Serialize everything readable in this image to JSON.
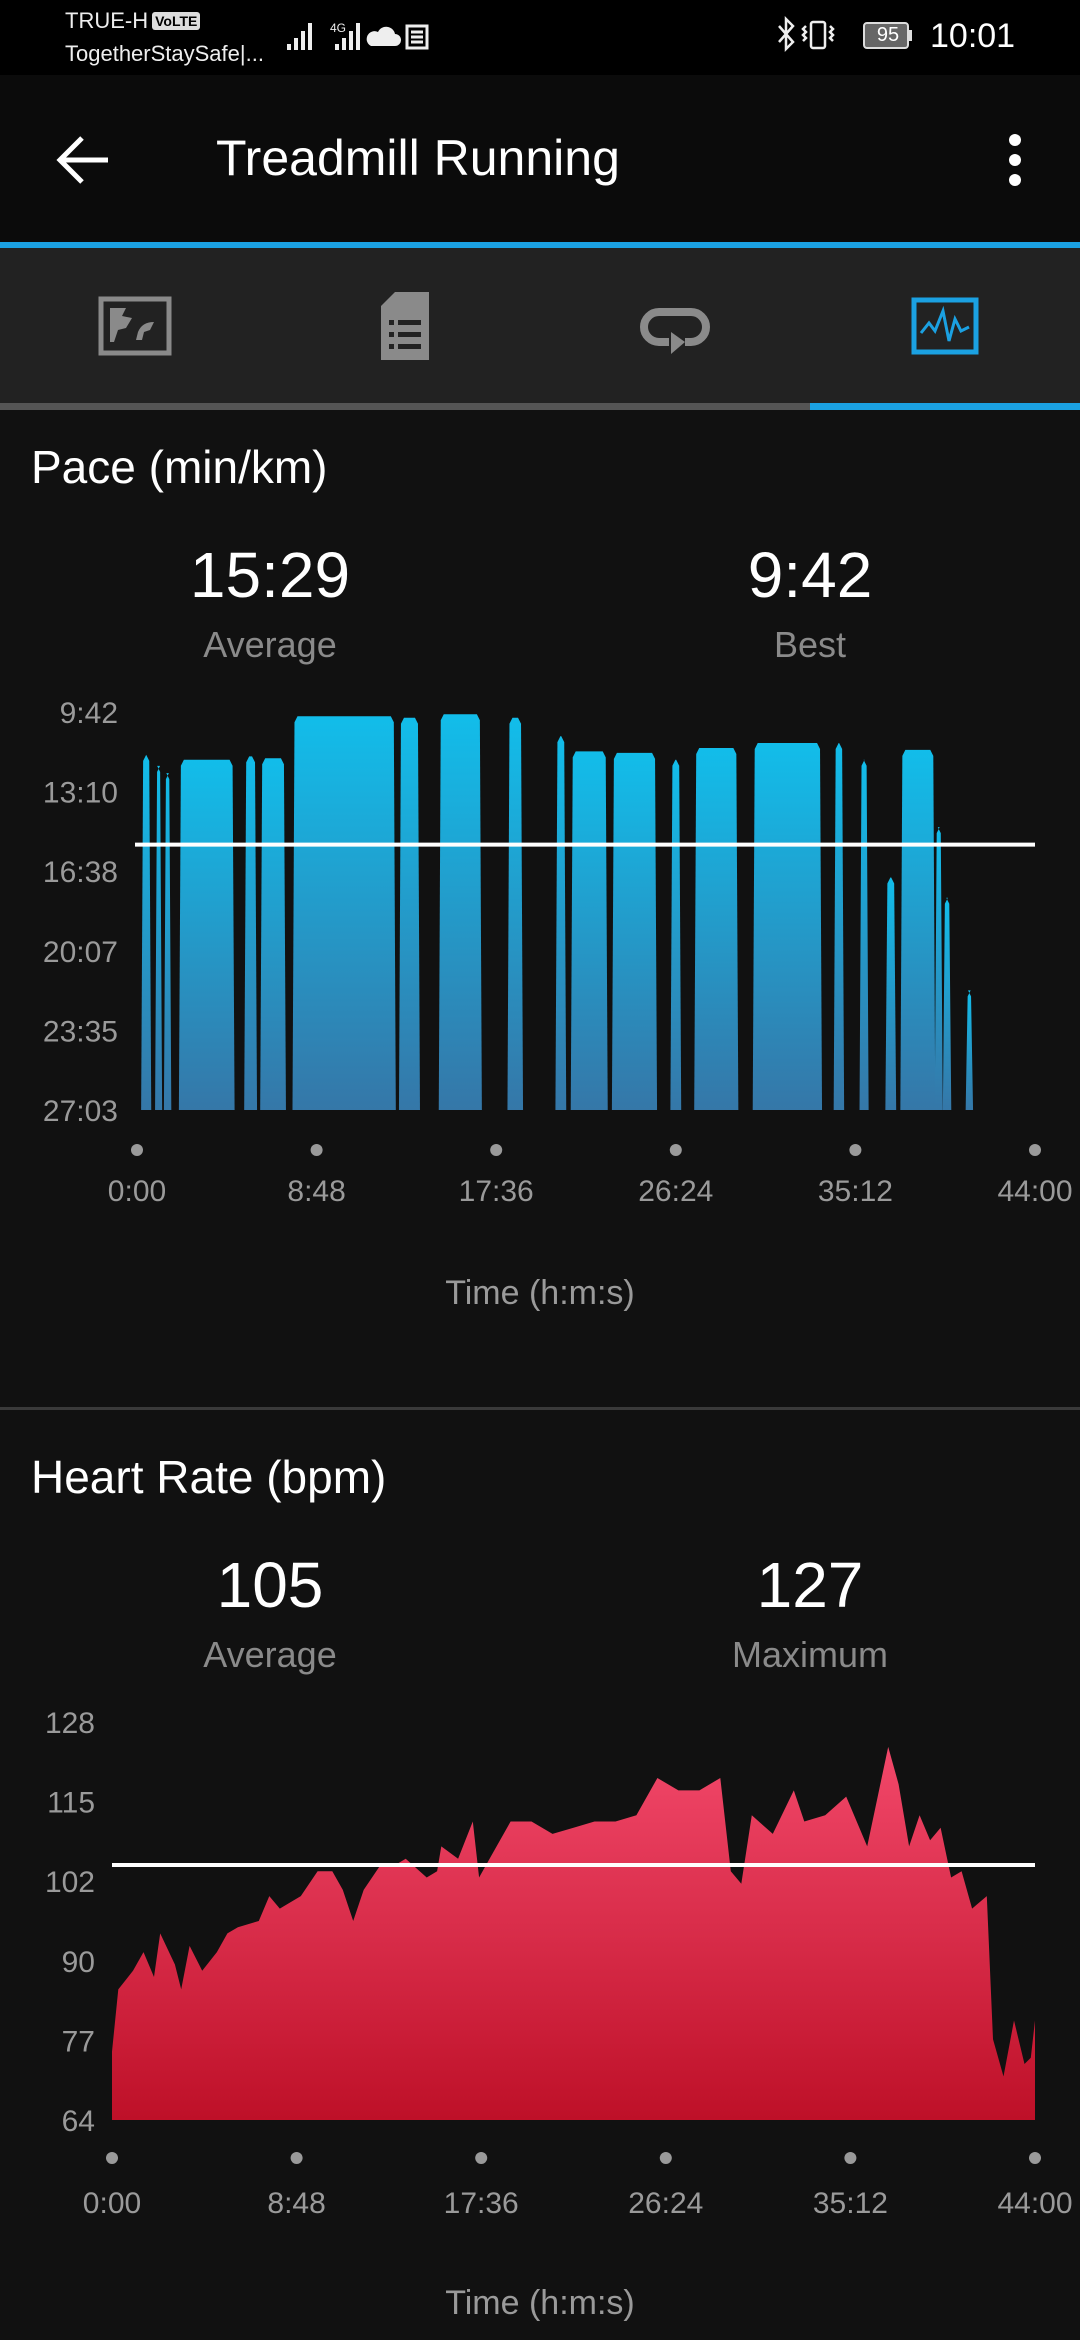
{
  "status_bar": {
    "carrier": "TRUE-H",
    "volte_badge": "VoLTE",
    "notification_text": "TogetherStaySafe|...",
    "battery_level": "95",
    "time": "10:01",
    "icons": [
      "signal-icon",
      "4g-signal-icon",
      "cloud-icon",
      "news-icon",
      "bluetooth-icon",
      "vibrate-icon",
      "battery-icon"
    ]
  },
  "app_bar": {
    "title": "Treadmill Running",
    "back_icon": "arrow-left-icon",
    "menu_icon": "more-vertical-icon"
  },
  "colors": {
    "accent": "#1ba1e2",
    "pace_top": "#12bdea",
    "pace_bottom": "#3577a8",
    "hr_top": "#f2486a",
    "hr_bottom": "#be1028",
    "inactive_icon": "#8a8a8a"
  },
  "tabs": [
    {
      "name": "map",
      "icon": "map-icon",
      "active": false
    },
    {
      "name": "details",
      "icon": "document-list-icon",
      "active": false
    },
    {
      "name": "laps",
      "icon": "laps-loop-icon",
      "active": false
    },
    {
      "name": "charts",
      "icon": "chart-pulse-icon",
      "active": true
    }
  ],
  "pace": {
    "title": "Pace (min/km)",
    "average_value": "15:29",
    "average_label": "Average",
    "best_value": "9:42",
    "best_label": "Best"
  },
  "heart_rate": {
    "title": "Heart Rate (bpm)",
    "average_value": "105",
    "average_label": "Average",
    "max_value": "127",
    "max_label": "Maximum"
  },
  "chart_data": [
    {
      "type": "area",
      "xlabel": "Time (h:m:s)",
      "ylabel": "Pace (min/km)",
      "x_ticks": [
        "0:00",
        "8:48",
        "17:36",
        "26:24",
        "35:12",
        "44:00"
      ],
      "y_ticks": [
        "9:42",
        "13:10",
        "16:38",
        "20:07",
        "23:35",
        "27:03"
      ],
      "xlim": [
        "0:00",
        "44:00"
      ],
      "ylim": [
        "27:03",
        "9:42"
      ],
      "y_inverted": true,
      "average_line": "15:29",
      "grid": false,
      "segments": [
        {
          "start": "0:18",
          "end": "0:36",
          "pace": "11:34"
        },
        {
          "start": "0:59",
          "end": "1:08",
          "pace": "12:03"
        },
        {
          "start": "1:25",
          "end": "1:35",
          "pace": "12:22"
        },
        {
          "start": "2:09",
          "end": "4:41",
          "pace": "11:47"
        },
        {
          "start": "5:21",
          "end": "5:47",
          "pace": "11:38"
        },
        {
          "start": "6:08",
          "end": "7:12",
          "pace": "11:43"
        },
        {
          "start": "7:43",
          "end": "12:35",
          "pace": "9:53"
        },
        {
          "start": "12:56",
          "end": "13:46",
          "pace": "9:57"
        },
        {
          "start": "14:53",
          "end": "16:48",
          "pace": "9:48"
        },
        {
          "start": "18:15",
          "end": "18:49",
          "pace": "9:57"
        },
        {
          "start": "20:36",
          "end": "20:56",
          "pace": "10:45"
        },
        {
          "start": "21:21",
          "end": "22:58",
          "pace": "11:25"
        },
        {
          "start": "23:22",
          "end": "25:23",
          "pace": "11:29"
        },
        {
          "start": "26:14",
          "end": "26:34",
          "pace": "11:47"
        },
        {
          "start": "27:24",
          "end": "29:22",
          "pace": "11:16"
        },
        {
          "start": "30:16",
          "end": "33:28",
          "pace": "11:03"
        },
        {
          "start": "34:14",
          "end": "34:33",
          "pace": "11:03"
        },
        {
          "start": "35:30",
          "end": "35:45",
          "pace": "11:47"
        },
        {
          "start": "36:46",
          "end": "37:06",
          "pace": "16:55"
        },
        {
          "start": "37:30",
          "end": "39:01",
          "pace": "11:21"
        },
        {
          "start": "39:11",
          "end": "39:23",
          "pace": "14:43"
        },
        {
          "start": "39:35",
          "end": "39:48",
          "pace": "17:48"
        },
        {
          "start": "40:42",
          "end": "40:52",
          "pace": "21:50"
        }
      ]
    },
    {
      "type": "area",
      "xlabel": "Time (h:m:s)",
      "ylabel": "Heart Rate (bpm)",
      "x_ticks": [
        "0:00",
        "8:48",
        "17:36",
        "26:24",
        "35:12",
        "44:00"
      ],
      "y_ticks": [
        "128",
        "115",
        "102",
        "90",
        "77",
        "64"
      ],
      "xlim": [
        "0:00",
        "44:00"
      ],
      "ylim": [
        64,
        128
      ],
      "average_line": 105,
      "grid": false,
      "points": [
        [
          "0:00",
          75
        ],
        [
          "0:18",
          85
        ],
        [
          "1:00",
          88
        ],
        [
          "1:30",
          91
        ],
        [
          "2:00",
          87
        ],
        [
          "2:18",
          94
        ],
        [
          "3:00",
          89
        ],
        [
          "3:18",
          85
        ],
        [
          "3:42",
          92
        ],
        [
          "4:18",
          88
        ],
        [
          "5:00",
          91
        ],
        [
          "5:30",
          94
        ],
        [
          "6:00",
          95
        ],
        [
          "7:00",
          96
        ],
        [
          "7:30",
          100
        ],
        [
          "8:00",
          98
        ],
        [
          "9:00",
          100
        ],
        [
          "9:48",
          104
        ],
        [
          "10:30",
          104
        ],
        [
          "11:00",
          101
        ],
        [
          "11:30",
          96
        ],
        [
          "12:00",
          101
        ],
        [
          "12:48",
          105
        ],
        [
          "13:30",
          105
        ],
        [
          "14:00",
          106
        ],
        [
          "15:00",
          103
        ],
        [
          "15:30",
          104
        ],
        [
          "15:42",
          108
        ],
        [
          "16:30",
          106
        ],
        [
          "17:12",
          112
        ],
        [
          "17:30",
          103
        ],
        [
          "18:00",
          106
        ],
        [
          "19:00",
          112
        ],
        [
          "20:00",
          112
        ],
        [
          "21:00",
          110
        ],
        [
          "22:00",
          111
        ],
        [
          "23:00",
          112
        ],
        [
          "24:00",
          112
        ],
        [
          "25:00",
          113
        ],
        [
          "26:00",
          119
        ],
        [
          "27:00",
          117
        ],
        [
          "28:00",
          117
        ],
        [
          "29:00",
          119
        ],
        [
          "29:30",
          104
        ],
        [
          "30:00",
          102
        ],
        [
          "30:30",
          113
        ],
        [
          "31:30",
          110
        ],
        [
          "32:30",
          117
        ],
        [
          "33:00",
          112
        ],
        [
          "34:00",
          113
        ],
        [
          "35:00",
          116
        ],
        [
          "36:00",
          108
        ],
        [
          "37:00",
          124
        ],
        [
          "37:30",
          118
        ],
        [
          "38:00",
          108
        ],
        [
          "38:30",
          113
        ],
        [
          "39:00",
          109
        ],
        [
          "39:30",
          111
        ],
        [
          "40:00",
          103
        ],
        [
          "40:30",
          104
        ],
        [
          "41:00",
          98
        ],
        [
          "41:42",
          100
        ],
        [
          "42:00",
          77
        ],
        [
          "42:30",
          71
        ],
        [
          "43:00",
          80
        ],
        [
          "43:30",
          73
        ],
        [
          "43:48",
          74
        ],
        [
          "44:00",
          80
        ]
      ]
    }
  ]
}
